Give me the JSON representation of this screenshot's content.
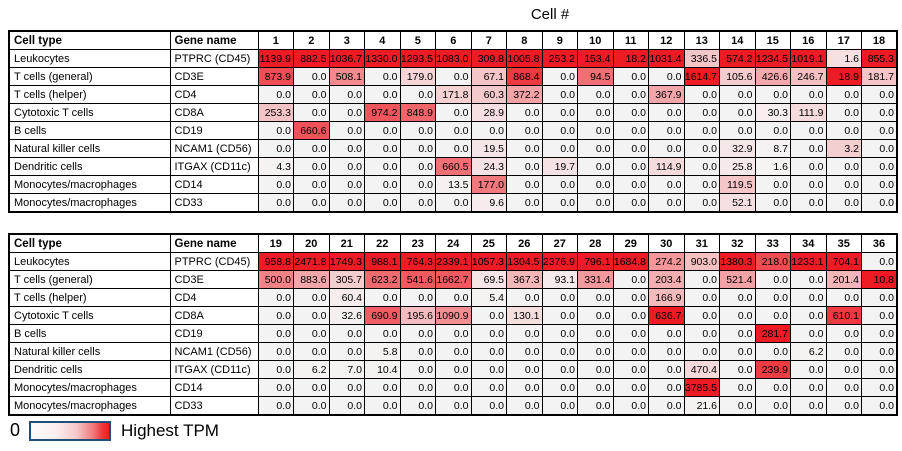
{
  "title": "Cell #",
  "header": {
    "cell_type": "Cell type",
    "gene_name": "Gene name"
  },
  "legend": {
    "min_label": "0",
    "max_label": "Highest TPM",
    "border_color": "#1f4e79"
  },
  "chart_data": {
    "type": "heatmap",
    "title": "Cell #",
    "unit": "TPM",
    "header": {
      "cell_type": "Cell type",
      "gene_name": "Gene name"
    },
    "color_scale": {
      "min": 0,
      "min_label": "0",
      "max_label": "Highest TPM",
      "normalization": "per-column maximum",
      "zero_color": "#f4f3f3",
      "ramp_start": "#f6f3f3",
      "high_color": "#ed1c24"
    },
    "tables": [
      {
        "name": "cells-1-18",
        "values_key": "tpm_1_18",
        "cell_numbers": [
          1,
          2,
          3,
          4,
          5,
          6,
          7,
          8,
          9,
          10,
          11,
          12,
          13,
          14,
          15,
          16,
          17,
          18
        ]
      },
      {
        "name": "cells-19-36",
        "values_key": "tpm_19_36",
        "cell_numbers": [
          19,
          20,
          21,
          22,
          23,
          24,
          25,
          26,
          27,
          28,
          29,
          30,
          31,
          32,
          33,
          34,
          35,
          36
        ]
      }
    ],
    "rows": [
      {
        "cell_type": "Leukocytes",
        "gene_name": "PTPRC (CD45)",
        "tpm_1_18": [
          1139.9,
          882.5,
          1036.7,
          1330.0,
          1293.5,
          1083.0,
          309.8,
          1005.8,
          253.2,
          153.4,
          18.2,
          1031.4,
          336.5,
          574.2,
          1234.5,
          1019.1,
          1.6,
          855.3
        ],
        "tpm_19_36": [
          958.8,
          2471.8,
          1749.3,
          988.1,
          764.3,
          2339.1,
          1057.3,
          1304.5,
          2376.9,
          796.1,
          1684.8,
          274.2,
          903.0,
          1380.3,
          218.0,
          1233.1,
          704.1,
          0.0
        ]
      },
      {
        "cell_type": "T cells (general)",
        "gene_name": "CD3E",
        "tpm_1_18": [
          873.9,
          0.0,
          508.1,
          0.0,
          179.0,
          0.0,
          67.1,
          868.4,
          0.0,
          94.5,
          0.0,
          0.0,
          1614.7,
          105.6,
          426.6,
          246.7,
          18.9,
          181.7
        ],
        "tpm_19_36": [
          500.0,
          883.6,
          305.7,
          623.2,
          541.6,
          1662.7,
          69.5,
          367.3,
          93.1,
          331.4,
          0.0,
          203.4,
          0.0,
          521.4,
          0.0,
          0.0,
          201.4,
          10.8
        ]
      },
      {
        "cell_type": "T cells (helper)",
        "gene_name": "CD4",
        "tpm_1_18": [
          0.0,
          0.0,
          0.0,
          0.0,
          0.0,
          171.8,
          60.3,
          372.2,
          0.0,
          0.0,
          0.0,
          367.9,
          0.0,
          0.0,
          0.0,
          0.0,
          0.0,
          0.0
        ],
        "tpm_19_36": [
          0.0,
          0.0,
          60.4,
          0.0,
          0.0,
          0.0,
          5.4,
          0.0,
          0.0,
          0.0,
          0.0,
          166.9,
          0.0,
          0.0,
          0.0,
          0.0,
          0.0,
          0.0
        ]
      },
      {
        "cell_type": "Cytotoxic T cells",
        "gene_name": "CD8A",
        "tpm_1_18": [
          253.3,
          0.0,
          0.0,
          974.2,
          848.9,
          0.0,
          28.9,
          0.0,
          0.0,
          0.0,
          0.0,
          0.0,
          0.0,
          0.0,
          30.3,
          111.9,
          0.0,
          0.0
        ],
        "tpm_19_36": [
          0.0,
          0.0,
          32.6,
          690.9,
          195.6,
          1090.9,
          0.0,
          130.1,
          0.0,
          0.0,
          0.0,
          636.7,
          0.0,
          0.0,
          0.0,
          0.0,
          610.1,
          0.0
        ]
      },
      {
        "cell_type": "B cells",
        "gene_name": "CD19",
        "tpm_1_18": [
          0.0,
          660.6,
          0.0,
          0.0,
          0.0,
          0.0,
          0.0,
          0.0,
          0.0,
          0.0,
          0.0,
          0.0,
          0.0,
          0.0,
          0.0,
          0.0,
          0.0,
          0.0
        ],
        "tpm_19_36": [
          0.0,
          0.0,
          0.0,
          0.0,
          0.0,
          0.0,
          0.0,
          0.0,
          0.0,
          0.0,
          0.0,
          0.0,
          0.0,
          0.0,
          281.7,
          0.0,
          0.0,
          0.0
        ]
      },
      {
        "cell_type": "Natural killer cells",
        "gene_name": "NCAM1 (CD56)",
        "tpm_1_18": [
          0.0,
          0.0,
          0.0,
          0.0,
          0.0,
          0.0,
          19.5,
          0.0,
          0.0,
          0.0,
          0.0,
          0.0,
          0.0,
          32.9,
          8.7,
          0.0,
          3.2,
          0.0
        ],
        "tpm_19_36": [
          0.0,
          0.0,
          0.0,
          5.8,
          0.0,
          0.0,
          0.0,
          0.0,
          0.0,
          0.0,
          0.0,
          0.0,
          0.0,
          0.0,
          0.0,
          6.2,
          0.0,
          0.0
        ]
      },
      {
        "cell_type": "Dendritic cells",
        "gene_name": "ITGAX (CD11c)",
        "tpm_1_18": [
          4.3,
          0.0,
          0.0,
          0.0,
          0.0,
          660.5,
          24.3,
          0.0,
          19.7,
          0.0,
          0.0,
          114.9,
          0.0,
          25.8,
          1.6,
          0.0,
          0.0,
          0.0
        ],
        "tpm_19_36": [
          0.0,
          6.2,
          7.0,
          10.4,
          0.0,
          0.0,
          0.0,
          0.0,
          0.0,
          0.0,
          0.0,
          0.0,
          470.4,
          0.0,
          239.9,
          0.0,
          0.0,
          0.0
        ]
      },
      {
        "cell_type": "Monocytes/macrophages",
        "gene_name": "CD14",
        "tpm_1_18": [
          0.0,
          0.0,
          0.0,
          0.0,
          0.0,
          13.5,
          177.0,
          0.0,
          0.0,
          0.0,
          0.0,
          0.0,
          0.0,
          119.5,
          0.0,
          0.0,
          0.0,
          0.0
        ],
        "tpm_19_36": [
          0.0,
          0.0,
          0.0,
          0.0,
          0.0,
          0.0,
          0.0,
          0.0,
          0.0,
          0.0,
          0.0,
          0.0,
          3785.5,
          0.0,
          0.0,
          0.0,
          0.0,
          0.0
        ]
      },
      {
        "cell_type": "Monocytes/macrophages",
        "gene_name": "CD33",
        "tpm_1_18": [
          0.0,
          0.0,
          0.0,
          0.0,
          0.0,
          0.0,
          9.6,
          0.0,
          0.0,
          0.0,
          0.0,
          0.0,
          0.0,
          52.1,
          0.0,
          0.0,
          0.0,
          0.0
        ],
        "tpm_19_36": [
          0.0,
          0.0,
          0.0,
          0.0,
          0.0,
          0.0,
          0.0,
          0.0,
          0.0,
          0.0,
          0.0,
          0.0,
          21.6,
          0.0,
          0.0,
          0.0,
          0.0,
          0.0
        ]
      }
    ]
  }
}
